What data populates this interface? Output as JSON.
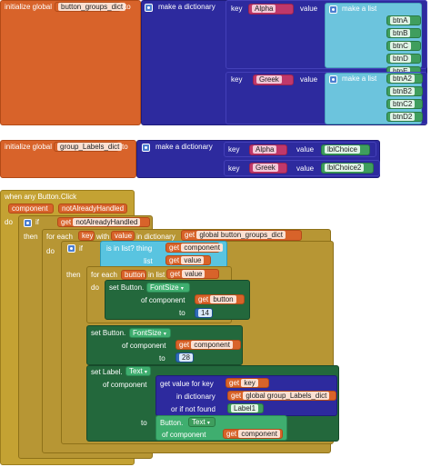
{
  "block1": {
    "init_label": "initialize global",
    "var_name": "button_groups_dict",
    "to": "to",
    "make_dict": "make a dictionary",
    "pairs": [
      {
        "key_label": "key",
        "key": "Alpha",
        "value_label": "value",
        "make_list": "make a list",
        "items": [
          "btnA",
          "btnB",
          "btnC",
          "btnD",
          "btnE"
        ]
      },
      {
        "key_label": "key",
        "key": "Greek",
        "value_label": "value",
        "make_list": "make a list",
        "items": [
          "btnA2",
          "btnB2",
          "btnC2",
          "btnD2"
        ]
      }
    ]
  },
  "block2": {
    "init_label": "initialize global",
    "var_name": "group_Labels_dict",
    "to": "to",
    "make_dict": "make a dictionary",
    "pairs": [
      {
        "key_label": "key",
        "key": "Alpha",
        "value_label": "value",
        "value": "lblChoice"
      },
      {
        "key_label": "key",
        "key": "Greek",
        "value_label": "value",
        "value": "lblChoice2"
      }
    ]
  },
  "event": {
    "header": "when any Button.Click",
    "params": [
      "component",
      "notAlreadyHandled"
    ],
    "do": "do",
    "if": "if",
    "then": "then",
    "get": "get",
    "notAlreadyHandled": "notAlreadyHandled",
    "for_each": "for each",
    "key": "key",
    "with": "with",
    "value": "value",
    "in_dictionary": "in dictionary",
    "global_button_groups_dict": "global button_groups_dict",
    "is_in_list": "is in list? thing",
    "component": "component",
    "list": "list",
    "for_each_button": "for each",
    "button": "button",
    "in_list": "in list",
    "set_button": "set Button.",
    "fontsize": "FontSize",
    "of_component": "of component",
    "to": "to",
    "val14": "14",
    "val28": "28",
    "set_label": "set Label.",
    "text": "Text",
    "get_value_for_key": "get value for key",
    "global_group_labels": "global group_Labels_dict",
    "or_if_not_found": "or if not found",
    "label1": "Label1",
    "button_text": "Button.",
    "text2": "Text",
    "if_then": "then"
  }
}
